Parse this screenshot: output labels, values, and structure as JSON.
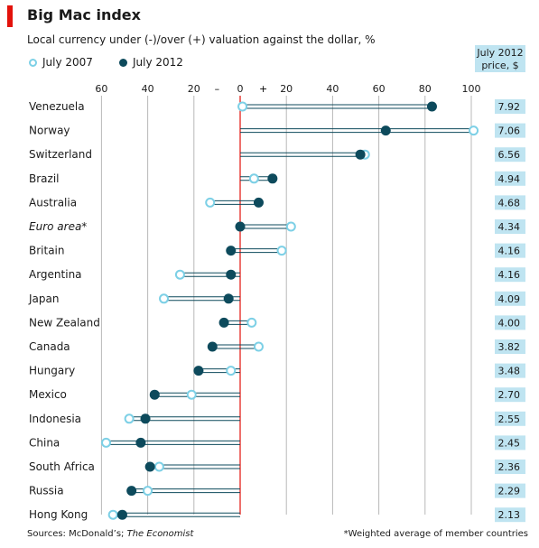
{
  "header": {
    "title": "Big Mac index",
    "subtitle": "Local currency under (-)/over (+) valuation against the dollar, %",
    "price_head_line1": "July 2012",
    "price_head_line2": "price, $"
  },
  "legend": {
    "series_a": "July 2007",
    "series_b": "July 2012"
  },
  "footer": {
    "sources_prefix": "Sources: McDonald’s;",
    "sources_italic": "The Economist",
    "note": "*Weighted average of member countries"
  },
  "colors": {
    "accent_red": "#e3120b",
    "july_2007": "#7dd0e6",
    "july_2012": "#0d4a5c",
    "price_box": "#bfe4f1"
  },
  "chart_data": {
    "type": "dot-plot",
    "title": "Big Mac index",
    "subtitle": "Local currency under (-)/over (+) valuation against the dollar, %",
    "xlim": [
      -60,
      100
    ],
    "ticks": [
      -60,
      -40,
      -20,
      0,
      20,
      40,
      60,
      80,
      100
    ],
    "tick_labels": [
      "60",
      "40",
      "20",
      "0",
      "20",
      "40",
      "60",
      "80",
      "100"
    ],
    "sign_labels": {
      "minus": "–",
      "plus": "+"
    },
    "grid": true,
    "legend_position": "top-left",
    "categories": [
      "Venezuela",
      "Norway",
      "Switzerland",
      "Brazil",
      "Australia",
      "Euro area*",
      "Britain",
      "Argentina",
      "Japan",
      "New Zealand",
      "Canada",
      "Hungary",
      "Mexico",
      "Indonesia",
      "China",
      "South Africa",
      "Russia",
      "Hong Kong"
    ],
    "italic_categories": [
      "Euro area*"
    ],
    "series": [
      {
        "name": "July 2007",
        "values": [
          1,
          101,
          54,
          6,
          -13,
          22,
          18,
          -26,
          -33,
          5,
          8,
          -4,
          -21,
          -48,
          -58,
          -35,
          -40,
          -55
        ]
      },
      {
        "name": "July 2012",
        "values": [
          83,
          63,
          52,
          14,
          8,
          0,
          -4,
          -4,
          -5,
          -7,
          -12,
          -18,
          -37,
          -41,
          -43,
          -39,
          -47,
          -51
        ]
      }
    ],
    "price_label": "July 2012 price, $",
    "prices": [
      "7.92",
      "7.06",
      "6.56",
      "4.94",
      "4.68",
      "4.34",
      "4.16",
      "4.16",
      "4.09",
      "4.00",
      "3.82",
      "3.48",
      "2.70",
      "2.55",
      "2.45",
      "2.36",
      "2.29",
      "2.13"
    ]
  }
}
